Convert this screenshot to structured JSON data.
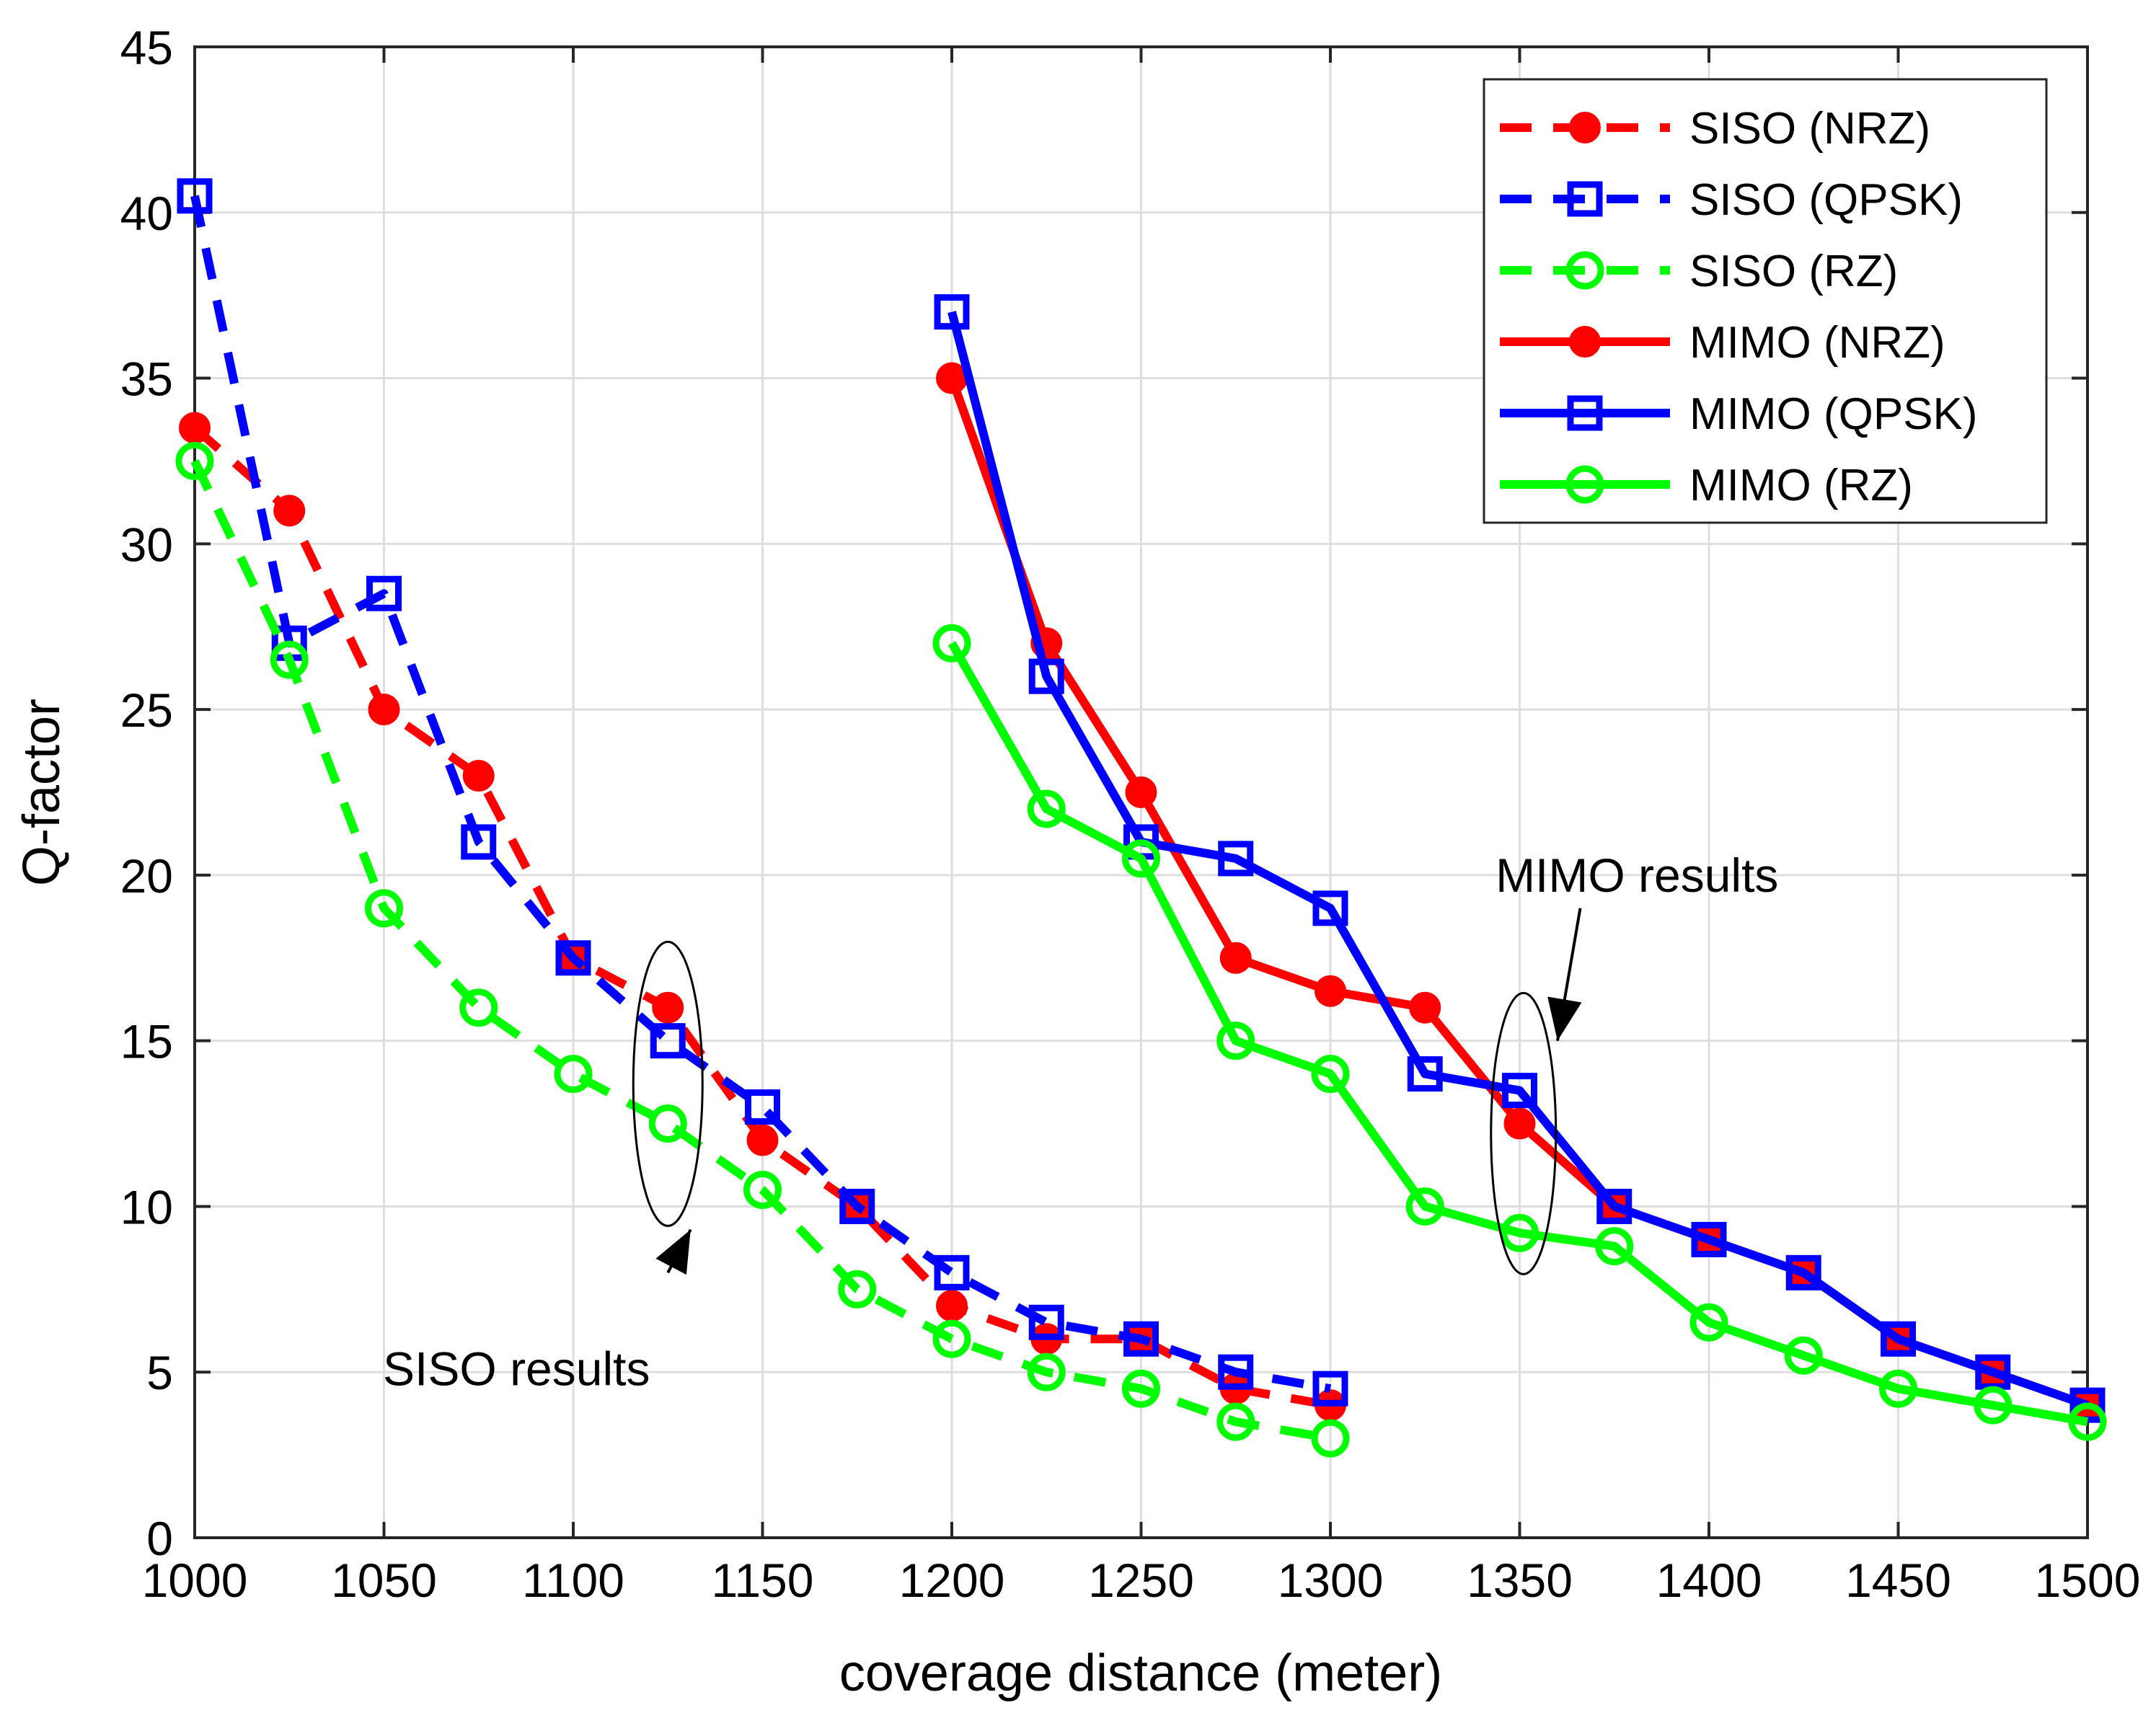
{
  "chart_data": {
    "type": "line",
    "title": "",
    "xlabel": "coverage distance (meter)",
    "ylabel": "Q-factor",
    "xlim": [
      1000,
      1500
    ],
    "ylim": [
      0,
      45
    ],
    "xticks": [
      1000,
      1050,
      1100,
      1150,
      1200,
      1250,
      1300,
      1350,
      1400,
      1450,
      1500
    ],
    "yticks": [
      0,
      5,
      10,
      15,
      20,
      25,
      30,
      35,
      40,
      45
    ],
    "grid": true,
    "legend_position": "top-right",
    "series": [
      {
        "name": "SISO (NRZ)",
        "color": "#ff0000",
        "line": "dashed",
        "marker": "filled-circle",
        "x": [
          1000,
          1025,
          1050,
          1075,
          1100,
          1125,
          1150,
          1175,
          1200,
          1225,
          1250,
          1275,
          1300
        ],
        "y": [
          33.5,
          31,
          25,
          23,
          17.5,
          16,
          12,
          10,
          7,
          6,
          6,
          4.5,
          4
        ]
      },
      {
        "name": "SISO (QPSK)",
        "color": "#0000ff",
        "line": "dashed",
        "marker": "square",
        "x": [
          1000,
          1025,
          1050,
          1075,
          1100,
          1125,
          1150,
          1175,
          1200,
          1225,
          1250,
          1275,
          1300
        ],
        "y": [
          40.5,
          27,
          28.5,
          21,
          17.5,
          15,
          13,
          10,
          8,
          6.5,
          6,
          5,
          4.5
        ]
      },
      {
        "name": "SISO (RZ)",
        "color": "#00ff00",
        "line": "dashed",
        "marker": "circle",
        "x": [
          1000,
          1025,
          1050,
          1075,
          1100,
          1125,
          1150,
          1175,
          1200,
          1225,
          1250,
          1275,
          1300
        ],
        "y": [
          32.5,
          26.5,
          19,
          16,
          14,
          12.5,
          10.5,
          7.5,
          6,
          5,
          4.5,
          3.5,
          3
        ]
      },
      {
        "name": "MIMO (NRZ)",
        "color": "#ff0000",
        "line": "solid",
        "marker": "filled-circle",
        "x": [
          1200,
          1225,
          1250,
          1275,
          1300,
          1325,
          1350,
          1375,
          1400,
          1425,
          1450,
          1475,
          1500
        ],
        "y": [
          35,
          27,
          22.5,
          17.5,
          16.5,
          16,
          12.5,
          10,
          9,
          8,
          6,
          5,
          4
        ]
      },
      {
        "name": "MIMO (QPSK)",
        "color": "#0000ff",
        "line": "solid",
        "marker": "square",
        "x": [
          1200,
          1225,
          1250,
          1275,
          1300,
          1325,
          1350,
          1375,
          1400,
          1425,
          1450,
          1475,
          1500
        ],
        "y": [
          37,
          26,
          21,
          20.5,
          19,
          14,
          13.5,
          10,
          9,
          8,
          6,
          5,
          4
        ]
      },
      {
        "name": "MIMO (RZ)",
        "color": "#00ff00",
        "line": "solid",
        "marker": "circle",
        "x": [
          1200,
          1225,
          1250,
          1275,
          1300,
          1325,
          1350,
          1375,
          1400,
          1425,
          1450,
          1475,
          1500
        ],
        "y": [
          27,
          22,
          20.5,
          15,
          14,
          10,
          9.2,
          8.8,
          6.5,
          5.5,
          4.5,
          4,
          3.5
        ]
      }
    ],
    "annotations": [
      {
        "text": "SISO results",
        "ellipse_center": [
          1125,
          13.7
        ],
        "arrow_from": [
          1125,
          8
        ],
        "arrow_to": [
          1131,
          9.3
        ]
      },
      {
        "text": "MIMO results",
        "ellipse_center": [
          1351,
          12.2
        ],
        "arrow_from": [
          1366,
          19
        ],
        "arrow_to": [
          1360,
          15
        ]
      }
    ]
  }
}
